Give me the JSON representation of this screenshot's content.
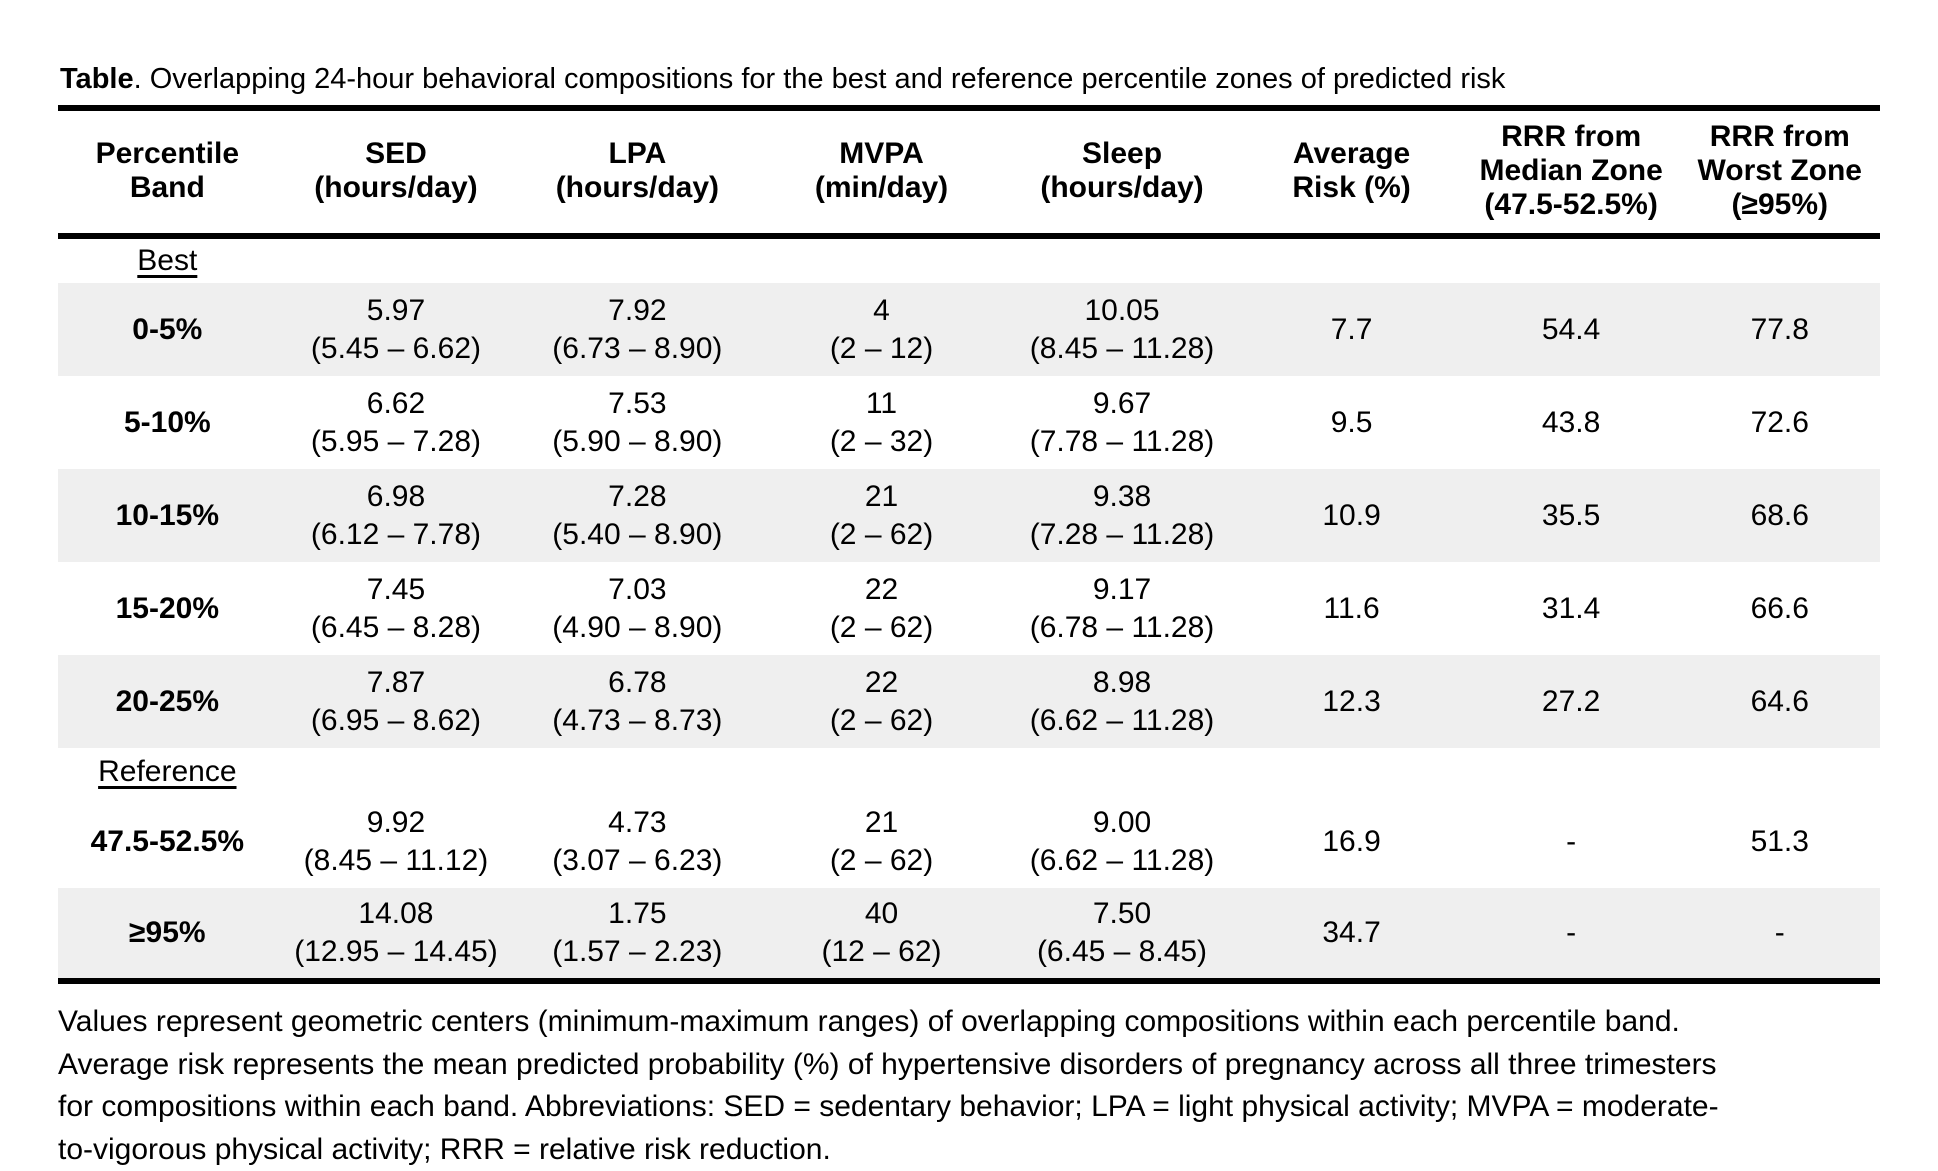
{
  "colors": {
    "background": "#ffffff",
    "text": "#000000",
    "rule": "#000000",
    "row_shading": "#efefef"
  },
  "title": {
    "label": "Table",
    "text": ". Overlapping 24-hour behavioral compositions for the best and reference percentile zones of predicted risk"
  },
  "table": {
    "columns": [
      {
        "key": "band",
        "header": [
          "Percentile",
          "Band"
        ]
      },
      {
        "key": "sed",
        "header": [
          "SED",
          "(hours/day)"
        ]
      },
      {
        "key": "lpa",
        "header": [
          "LPA",
          "(hours/day)"
        ]
      },
      {
        "key": "mvpa",
        "header": [
          "MVPA",
          "(min/day)"
        ]
      },
      {
        "key": "sleep",
        "header": [
          "Sleep",
          "(hours/day)"
        ]
      },
      {
        "key": "risk",
        "header": [
          "Average",
          "Risk (%)"
        ]
      },
      {
        "key": "rrr_median",
        "header": [
          "RRR from",
          "Median Zone",
          "(47.5-52.5%)"
        ]
      },
      {
        "key": "rrr_worst",
        "header": [
          "RRR from",
          "Worst Zone",
          "(≥95%)"
        ]
      }
    ],
    "sections": [
      {
        "label": "Best",
        "rows": [
          {
            "band": "0-5%",
            "shaded": true,
            "sed": [
              "5.97",
              "(5.45 – 6.62)"
            ],
            "lpa": [
              "7.92",
              "(6.73 – 8.90)"
            ],
            "mvpa": [
              "4",
              "(2 – 12)"
            ],
            "sleep": [
              "10.05",
              "(8.45 – 11.28)"
            ],
            "risk": "7.7",
            "rrr_median": "54.4",
            "rrr_worst": "77.8"
          },
          {
            "band": "5-10%",
            "shaded": false,
            "sed": [
              "6.62",
              "(5.95 – 7.28)"
            ],
            "lpa": [
              "7.53",
              "(5.90 – 8.90)"
            ],
            "mvpa": [
              "11",
              "(2 – 32)"
            ],
            "sleep": [
              "9.67",
              "(7.78 – 11.28)"
            ],
            "risk": "9.5",
            "rrr_median": "43.8",
            "rrr_worst": "72.6"
          },
          {
            "band": "10-15%",
            "shaded": true,
            "sed": [
              "6.98",
              "(6.12 – 7.78)"
            ],
            "lpa": [
              "7.28",
              "(5.40 – 8.90)"
            ],
            "mvpa": [
              "21",
              "(2 – 62)"
            ],
            "sleep": [
              "9.38",
              "(7.28 – 11.28)"
            ],
            "risk": "10.9",
            "rrr_median": "35.5",
            "rrr_worst": "68.6"
          },
          {
            "band": "15-20%",
            "shaded": false,
            "sed": [
              "7.45",
              "(6.45 – 8.28)"
            ],
            "lpa": [
              "7.03",
              "(4.90 – 8.90)"
            ],
            "mvpa": [
              "22",
              "(2 – 62)"
            ],
            "sleep": [
              "9.17",
              "(6.78 – 11.28)"
            ],
            "risk": "11.6",
            "rrr_median": "31.4",
            "rrr_worst": "66.6"
          },
          {
            "band": "20-25%",
            "shaded": true,
            "sed": [
              "7.87",
              "(6.95 – 8.62)"
            ],
            "lpa": [
              "6.78",
              "(4.73 – 8.73)"
            ],
            "mvpa": [
              "22",
              "(2 – 62)"
            ],
            "sleep": [
              "8.98",
              "(6.62 – 11.28)"
            ],
            "risk": "12.3",
            "rrr_median": "27.2",
            "rrr_worst": "64.6"
          }
        ]
      },
      {
        "label": "Reference",
        "rows": [
          {
            "band": "47.5-52.5%",
            "shaded": false,
            "sed": [
              "9.92",
              "(8.45 – 11.12)"
            ],
            "lpa": [
              "4.73",
              "(3.07 – 6.23)"
            ],
            "mvpa": [
              "21",
              "(2 – 62)"
            ],
            "sleep": [
              "9.00",
              "(6.62 – 11.28)"
            ],
            "risk": "16.9",
            "rrr_median": "-",
            "rrr_worst": "51.3"
          },
          {
            "band": "≥95%",
            "shaded": true,
            "sed": [
              "14.08",
              "(12.95 – 14.45)"
            ],
            "lpa": [
              "1.75",
              "(1.57 – 2.23)"
            ],
            "mvpa": [
              "40",
              "(12 – 62)"
            ],
            "sleep": [
              "7.50",
              "(6.45 – 8.45)"
            ],
            "risk": "34.7",
            "rrr_median": "-",
            "rrr_worst": "-"
          }
        ]
      }
    ]
  },
  "footnote": {
    "lines": [
      "Values represent geometric centers (minimum-maximum ranges) of overlapping compositions within each percentile band.",
      "Average risk represents the mean predicted probability (%) of hypertensive disorders of pregnancy across all three trimesters",
      "for compositions within each band. Abbreviations: SED = sedentary behavior; LPA = light physical activity; MVPA = moderate-",
      "to-vigorous physical activity; RRR = relative risk reduction."
    ]
  }
}
